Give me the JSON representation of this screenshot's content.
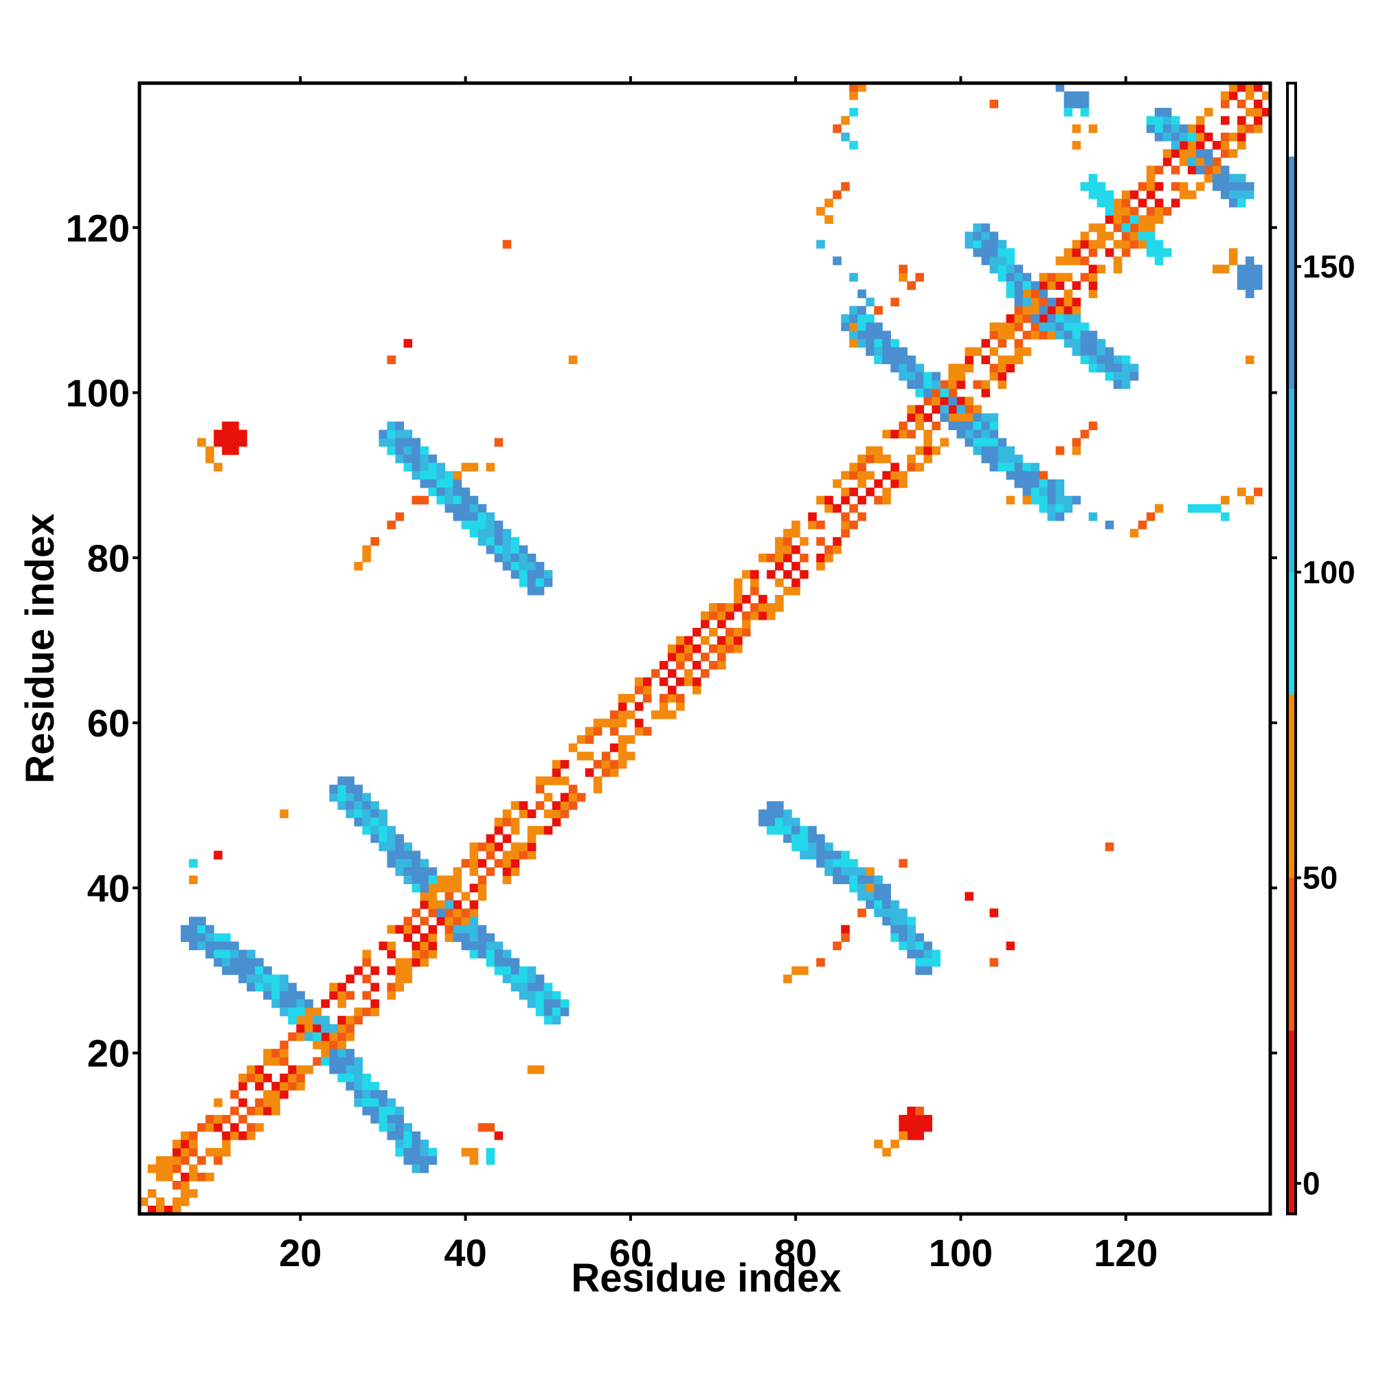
{
  "chart_data": {
    "type": "heatmap",
    "title": "",
    "xlabel": "Residue index",
    "ylabel": "Residue index",
    "xlim": [
      1,
      137
    ],
    "ylim": [
      1,
      137
    ],
    "x_ticks": [
      20,
      40,
      60,
      80,
      100,
      120
    ],
    "y_ticks": [
      20,
      40,
      60,
      80,
      100,
      120
    ],
    "colorbar": {
      "ticks": [
        0,
        50,
        100,
        150
      ],
      "range": [
        -5,
        180
      ],
      "segments": [
        {
          "from": -5,
          "to": 25,
          "color": "#e8120a"
        },
        {
          "from": 25,
          "to": 50,
          "color": "#f25a12"
        },
        {
          "from": 50,
          "to": 80,
          "color": "#f28a0e"
        },
        {
          "from": 80,
          "to": 100,
          "color": "#22d8ea"
        },
        {
          "from": 100,
          "to": 130,
          "color": "#36b8e0"
        },
        {
          "from": 130,
          "to": 168,
          "color": "#4a8fd0"
        },
        {
          "from": 168,
          "to": 180,
          "color": "#ffffff"
        }
      ]
    },
    "value_bands": {
      "red": 10,
      "red_orange": 35,
      "orange": 60,
      "cyan": 90,
      "light_blue": 115,
      "steel_blue": 150
    },
    "regions": [
      {
        "kind": "diag",
        "x0": 1,
        "x1": 137,
        "value": "alt_warm"
      },
      {
        "kind": "band",
        "points": [
          [
            7,
            35
          ],
          [
            18,
            27
          ],
          [
            23,
            22
          ]
        ],
        "width": 2.2,
        "value": "blue_mix"
      },
      {
        "kind": "band",
        "points": [
          [
            25,
            52
          ],
          [
            36,
            40
          ]
        ],
        "width": 2.2,
        "value": "blue_mix"
      },
      {
        "kind": "band",
        "points": [
          [
            38,
            37
          ],
          [
            51,
            25
          ]
        ],
        "width": 2.2,
        "value": "blue_mix"
      },
      {
        "kind": "band",
        "points": [
          [
            24,
            20
          ],
          [
            35,
            7
          ]
        ],
        "width": 2.2,
        "value": "blue_mix"
      },
      {
        "kind": "band",
        "points": [
          [
            31,
            95
          ],
          [
            49,
            77
          ]
        ],
        "width": 2.0,
        "value": "blue_mix"
      },
      {
        "kind": "band",
        "points": [
          [
            77,
            49
          ],
          [
            90,
            39
          ],
          [
            96,
            31
          ]
        ],
        "width": 2.0,
        "value": "blue_mix"
      },
      {
        "kind": "band",
        "points": [
          [
            87,
            109
          ],
          [
            100,
            97
          ],
          [
            103,
            96
          ]
        ],
        "width": 2.2,
        "value": "blue_mix"
      },
      {
        "kind": "band",
        "points": [
          [
            101,
            96
          ],
          [
            112,
            86
          ]
        ],
        "width": 2.2,
        "value": "blue_mix"
      },
      {
        "kind": "band",
        "points": [
          [
            102,
            119
          ],
          [
            110,
            110
          ]
        ],
        "width": 2.2,
        "value": "blue_mix"
      },
      {
        "kind": "band",
        "points": [
          [
            110,
            110
          ],
          [
            120,
            102
          ]
        ],
        "width": 2.2,
        "value": "blue_mix"
      },
      {
        "kind": "band",
        "points": [
          [
            124,
            133
          ],
          [
            134,
            124
          ]
        ],
        "width": 2.0,
        "value": "blue_mix"
      },
      {
        "kind": "band",
        "points": [
          [
            116,
            125
          ],
          [
            124,
            117
          ]
        ],
        "width": 1.8,
        "value": "cyan"
      },
      {
        "kind": "blob",
        "cx": 11.5,
        "cy": 94.5,
        "rx": 2.5,
        "ry": 1.6,
        "value": "red"
      },
      {
        "kind": "blob",
        "cx": 94.5,
        "cy": 11.5,
        "rx": 1.6,
        "ry": 2.5,
        "value": "red"
      },
      {
        "kind": "blob",
        "cx": 135,
        "cy": 114,
        "rx": 1.6,
        "ry": 2.0,
        "value": "steel_blue"
      },
      {
        "kind": "blob",
        "cx": 114,
        "cy": 135.5,
        "rx": 1.8,
        "ry": 1.2,
        "value": "steel_blue"
      },
      {
        "kind": "blob",
        "cx": 129.5,
        "cy": 86,
        "rx": 1.6,
        "ry": 1.0,
        "value": "cyan"
      }
    ],
    "cells": [
      [
        8,
        94,
        "orange"
      ],
      [
        9,
        93,
        "orange"
      ],
      [
        9,
        92,
        "orange"
      ],
      [
        10,
        91,
        "orange"
      ],
      [
        91,
        8,
        "orange"
      ],
      [
        92,
        9,
        "orange"
      ],
      [
        93,
        10,
        "orange"
      ],
      [
        90,
        9,
        "orange"
      ],
      [
        95,
        13,
        "red_orange"
      ],
      [
        27,
        79,
        "orange"
      ],
      [
        28,
        80,
        "orange"
      ],
      [
        28,
        81,
        "orange"
      ],
      [
        29,
        82,
        "red_orange"
      ],
      [
        31,
        84,
        "red_orange"
      ],
      [
        32,
        85,
        "red_orange"
      ],
      [
        34,
        87,
        "red_orange"
      ],
      [
        35,
        87,
        "red_orange"
      ],
      [
        79,
        29,
        "orange"
      ],
      [
        80,
        30,
        "orange"
      ],
      [
        81,
        30,
        "orange"
      ],
      [
        83,
        31,
        "red_orange"
      ],
      [
        85,
        33,
        "red_orange"
      ],
      [
        86,
        35,
        "red"
      ],
      [
        86,
        34,
        "red_orange"
      ],
      [
        88,
        37,
        "red_orange"
      ],
      [
        89,
        40,
        "orange"
      ],
      [
        89,
        42,
        "orange"
      ],
      [
        93,
        43,
        "red_orange"
      ],
      [
        39,
        90,
        "orange"
      ],
      [
        40,
        91,
        "orange"
      ],
      [
        41,
        91,
        "orange"
      ],
      [
        43,
        91,
        "orange"
      ],
      [
        44,
        94,
        "red_orange"
      ],
      [
        31,
        104,
        "red_orange"
      ],
      [
        33,
        106,
        "red"
      ],
      [
        45,
        118,
        "red_orange"
      ],
      [
        104,
        31,
        "red_orange"
      ],
      [
        106,
        33,
        "red"
      ],
      [
        118,
        45,
        "red_orange"
      ],
      [
        7,
        41,
        "orange"
      ],
      [
        7,
        43,
        "cyan"
      ],
      [
        10,
        44,
        "red"
      ],
      [
        18,
        49,
        "orange"
      ],
      [
        41,
        7,
        "orange"
      ],
      [
        43,
        7,
        "cyan"
      ],
      [
        44,
        10,
        "red"
      ],
      [
        49,
        18,
        "orange"
      ],
      [
        40,
        8,
        "orange"
      ],
      [
        41,
        8,
        "orange"
      ],
      [
        43,
        8,
        "cyan"
      ],
      [
        42,
        11,
        "red_orange"
      ],
      [
        43,
        11,
        "red_orange"
      ],
      [
        48,
        18,
        "orange"
      ],
      [
        83,
        118,
        "light_blue"
      ],
      [
        85,
        116,
        "steel_blue"
      ],
      [
        87,
        114,
        "light_blue"
      ],
      [
        88,
        112,
        "steel_blue"
      ],
      [
        89,
        111,
        "light_blue"
      ],
      [
        112,
        89,
        "light_blue"
      ],
      [
        114,
        87,
        "steel_blue"
      ],
      [
        116,
        85,
        "light_blue"
      ],
      [
        118,
        84,
        "steel_blue"
      ],
      [
        83,
        122,
        "orange"
      ],
      [
        84,
        123,
        "orange"
      ],
      [
        85,
        124,
        "red_orange"
      ],
      [
        86,
        125,
        "red_orange"
      ],
      [
        84,
        121,
        "orange"
      ],
      [
        86,
        133,
        "orange"
      ],
      [
        87,
        134,
        "cyan"
      ],
      [
        86,
        131,
        "light_blue"
      ],
      [
        87,
        130,
        "cyan"
      ],
      [
        85,
        132,
        "red_orange"
      ],
      [
        87,
        136,
        "orange"
      ],
      [
        88,
        137,
        "orange"
      ],
      [
        87,
        137,
        "red_orange"
      ],
      [
        87,
        106,
        "orange"
      ],
      [
        87,
        108,
        "orange"
      ],
      [
        90,
        110,
        "red_orange"
      ],
      [
        92,
        111,
        "red_orange"
      ],
      [
        94,
        113,
        "red_orange"
      ],
      [
        95,
        114,
        "red_orange"
      ],
      [
        93,
        114,
        "orange"
      ],
      [
        93,
        115,
        "red_orange"
      ],
      [
        106,
        87,
        "orange"
      ],
      [
        108,
        87,
        "orange"
      ],
      [
        110,
        90,
        "red_orange"
      ],
      [
        112,
        93,
        "red_orange"
      ],
      [
        114,
        94,
        "red_orange"
      ],
      [
        115,
        95,
        "red_orange"
      ],
      [
        114,
        93,
        "orange"
      ],
      [
        116,
        96,
        "red_orange"
      ],
      [
        104,
        135,
        "red_orange"
      ],
      [
        112,
        137,
        "steel_blue"
      ],
      [
        114,
        132,
        "orange"
      ],
      [
        116,
        132,
        "orange"
      ],
      [
        113,
        134,
        "cyan"
      ],
      [
        115,
        134,
        "cyan"
      ],
      [
        114,
        130,
        "orange"
      ],
      [
        121,
        83,
        "orange"
      ],
      [
        122,
        84,
        "red_orange"
      ],
      [
        123,
        85,
        "red_orange"
      ],
      [
        124,
        86,
        "orange"
      ],
      [
        132,
        87,
        "orange"
      ],
      [
        134,
        88,
        "orange"
      ],
      [
        135,
        87,
        "orange"
      ],
      [
        136,
        88,
        "red_orange"
      ],
      [
        132,
        85,
        "cyan"
      ],
      [
        130,
        86,
        "cyan"
      ],
      [
        132,
        115,
        "orange"
      ],
      [
        133,
        116,
        "orange"
      ],
      [
        131,
        115,
        "orange"
      ],
      [
        133,
        117,
        "orange"
      ],
      [
        135,
        104,
        "orange"
      ],
      [
        104,
        135,
        "red_orange"
      ],
      [
        101,
        39,
        "red"
      ],
      [
        104,
        37,
        "red"
      ],
      [
        53,
        104,
        "orange"
      ],
      [
        118,
        45,
        "red_orange"
      ]
    ]
  }
}
